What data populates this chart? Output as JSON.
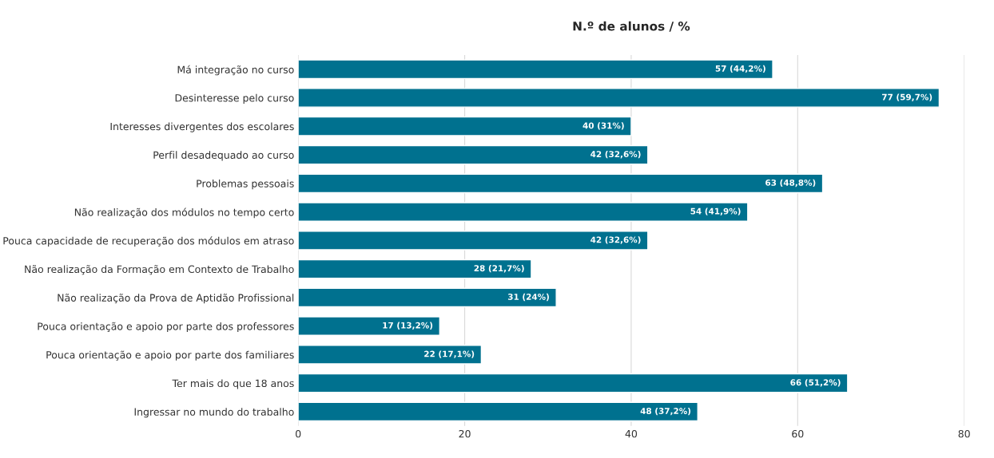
{
  "chart_data": {
    "type": "bar",
    "orientation": "horizontal",
    "title": "N.º de alunos / %",
    "categories": [
      "Má integração no curso",
      "Desinteresse pelo curso",
      "Interesses divergentes dos escolares",
      "Perfil desadequado ao curso",
      "Problemas pessoais",
      "Não realização dos módulos no tempo certo",
      "Pouca capacidade de recuperação dos módulos em atraso",
      "Não realização da Formação em Contexto de Trabalho",
      "Não realização da Prova de Aptidão Profissional",
      "Pouca orientação e apoio por parte dos professores",
      "Pouca orientação e apoio por parte dos familiares",
      "Ter mais do que 18 anos",
      "Ingressar no mundo do trabalho"
    ],
    "values": [
      57,
      77,
      40,
      42,
      63,
      54,
      42,
      28,
      31,
      17,
      22,
      66,
      48
    ],
    "value_labels": [
      "57 (44,2%)",
      "77 (59,7%)",
      "40 (31%)",
      "42 (32,6%)",
      "63 (48,8%)",
      "54 (41,9%)",
      "42 (32,6%)",
      "28 (21,7%)",
      "31 (24%)",
      "17 (13,2%)",
      "22 (17,1%)",
      "66 (51,2%)",
      "48 (37,2%)"
    ],
    "color": "#00718f",
    "xlim": [
      0,
      80
    ],
    "xticks": [
      0,
      20,
      40,
      60,
      80
    ],
    "grid": "x",
    "legend": false
  }
}
